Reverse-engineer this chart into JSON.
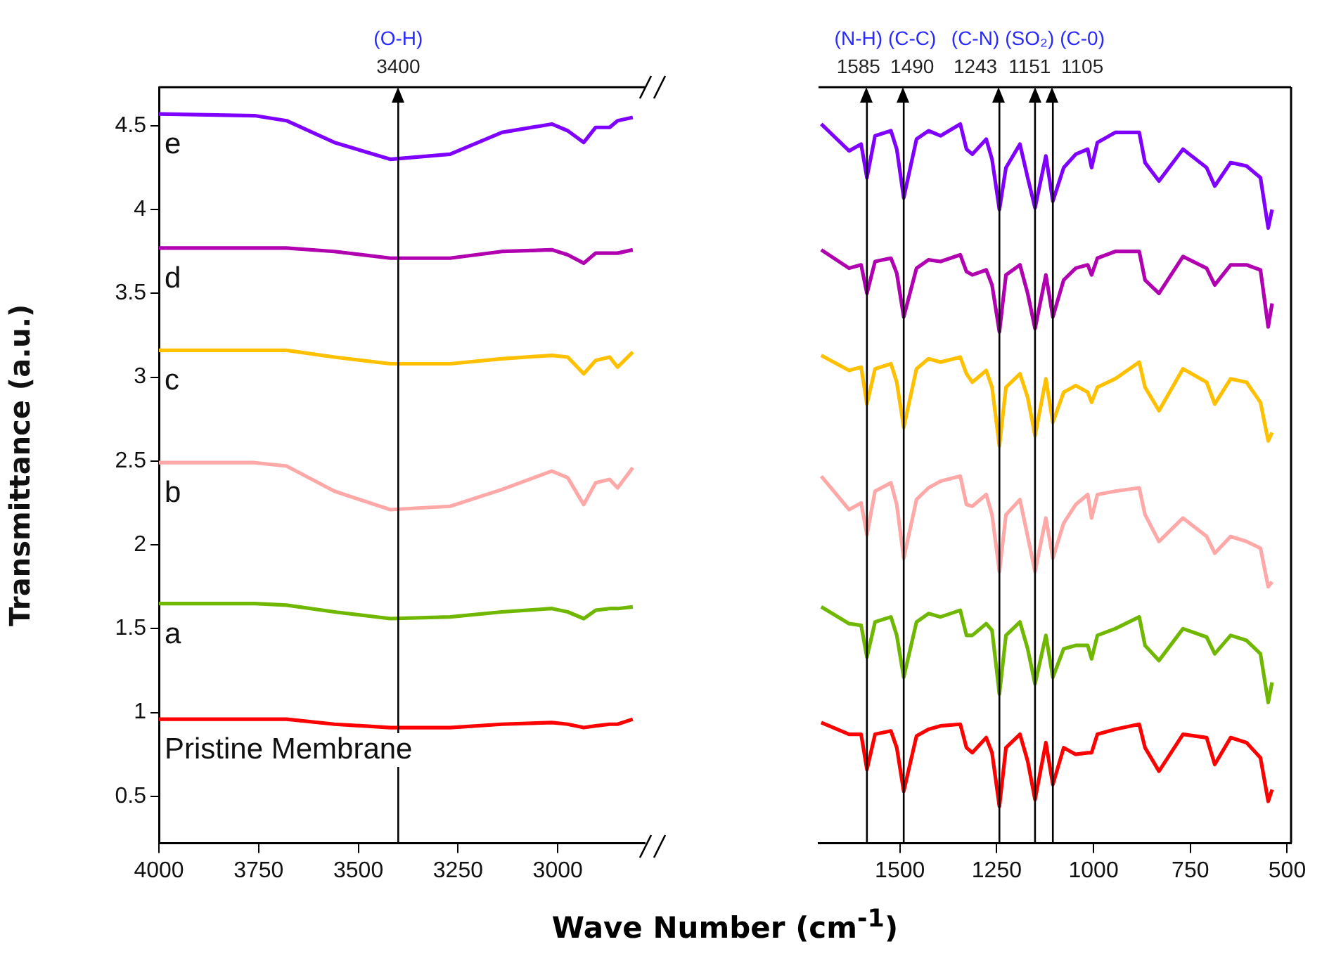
{
  "chart_data": [
    {
      "type": "line",
      "xlabel": "Wave Number (cm$^{-1}$)",
      "ylabel": "Transmittance (a.u.)",
      "xlim": [
        4000,
        2780
      ],
      "xticks": [
        4000,
        3750,
        3500,
        3250,
        3000
      ],
      "ylim": [
        0.22,
        4.73
      ],
      "yticks": [
        0.5,
        1.0,
        1.5,
        2.0,
        2.5,
        3.0,
        3.5,
        4.0,
        4.5
      ],
      "x": [
        4000,
        3760,
        3680,
        3560,
        3420,
        3270,
        3140,
        3015,
        2975,
        2935,
        2905,
        2870,
        2850,
        2812
      ],
      "series": [
        {
          "name": "e",
          "color": "#8000ff",
          "values": [
            4.57,
            4.56,
            4.53,
            4.4,
            4.3,
            4.33,
            4.46,
            4.51,
            4.47,
            4.4,
            4.49,
            4.49,
            4.53,
            4.55
          ]
        },
        {
          "name": "d",
          "color": "#b000b0",
          "values": [
            3.77,
            3.77,
            3.77,
            3.75,
            3.71,
            3.71,
            3.75,
            3.76,
            3.73,
            3.68,
            3.74,
            3.74,
            3.74,
            3.76
          ]
        },
        {
          "name": "c",
          "color": "#ffc000",
          "values": [
            3.16,
            3.16,
            3.16,
            3.12,
            3.08,
            3.08,
            3.11,
            3.13,
            3.12,
            3.02,
            3.1,
            3.12,
            3.06,
            3.15
          ]
        },
        {
          "name": "b",
          "color": "#ffa8a8",
          "values": [
            2.49,
            2.49,
            2.47,
            2.32,
            2.21,
            2.23,
            2.33,
            2.44,
            2.4,
            2.24,
            2.37,
            2.39,
            2.34,
            2.46
          ]
        },
        {
          "name": "a",
          "color": "#70b800",
          "values": [
            1.65,
            1.65,
            1.64,
            1.6,
            1.56,
            1.57,
            1.6,
            1.62,
            1.6,
            1.56,
            1.61,
            1.62,
            1.62,
            1.63
          ]
        },
        {
          "name": "Pristine Membrane",
          "color": "#ff0000",
          "values": [
            0.96,
            0.96,
            0.96,
            0.93,
            0.91,
            0.91,
            0.93,
            0.94,
            0.93,
            0.91,
            0.92,
            0.93,
            0.93,
            0.96
          ]
        }
      ],
      "ref_lines": [
        {
          "axis": "x",
          "value": 3400,
          "label": "(O-H)",
          "color": "#000000"
        }
      ],
      "annotations": [
        "3400"
      ]
    },
    {
      "type": "line",
      "tick_labels": "x",
      "xlim": [
        1710,
        490
      ],
      "xticks": [
        1500,
        1250,
        1000,
        750,
        500
      ],
      "ylim": [
        0.22,
        4.73
      ],
      "yticks": [
        0.5,
        1.0,
        1.5,
        2.0,
        2.5,
        3.0,
        3.5,
        4.0,
        4.5
      ],
      "x": [
        1703,
        1631,
        1600,
        1585,
        1564,
        1523,
        1508,
        1490,
        1457,
        1426,
        1395,
        1344,
        1328,
        1313,
        1277,
        1262,
        1243,
        1226,
        1190,
        1170,
        1151,
        1123,
        1105,
        1077,
        1046,
        1015,
        1005,
        990,
        944,
        882,
        867,
        831,
        769,
        708,
        687,
        646,
        605,
        569,
        549,
        539
      ],
      "series": [
        {
          "color": "#8000ff",
          "values": [
            4.51,
            4.35,
            4.39,
            4.19,
            4.44,
            4.47,
            4.36,
            4.07,
            4.42,
            4.47,
            4.44,
            4.51,
            4.36,
            4.33,
            4.42,
            4.3,
            4.0,
            4.25,
            4.39,
            4.19,
            4.01,
            4.32,
            4.05,
            4.25,
            4.33,
            4.36,
            4.25,
            4.4,
            4.46,
            4.46,
            4.28,
            4.17,
            4.36,
            4.25,
            4.14,
            4.28,
            4.26,
            4.19,
            3.89,
            4.0
          ]
        },
        {
          "color": "#b000b0",
          "values": [
            3.76,
            3.65,
            3.67,
            3.5,
            3.69,
            3.71,
            3.62,
            3.36,
            3.65,
            3.7,
            3.69,
            3.73,
            3.63,
            3.61,
            3.64,
            3.55,
            3.27,
            3.61,
            3.67,
            3.5,
            3.29,
            3.61,
            3.36,
            3.58,
            3.65,
            3.67,
            3.61,
            3.71,
            3.75,
            3.75,
            3.58,
            3.5,
            3.72,
            3.65,
            3.55,
            3.67,
            3.67,
            3.64,
            3.3,
            3.44
          ]
        },
        {
          "color": "#ffc000",
          "values": [
            3.13,
            3.04,
            3.06,
            2.84,
            3.05,
            3.08,
            2.97,
            2.7,
            3.05,
            3.11,
            3.09,
            3.12,
            3.02,
            2.97,
            3.04,
            2.94,
            2.59,
            2.94,
            3.02,
            2.88,
            2.65,
            2.99,
            2.73,
            2.91,
            2.95,
            2.91,
            2.85,
            2.94,
            2.99,
            3.09,
            2.94,
            2.8,
            3.05,
            2.97,
            2.84,
            2.99,
            2.97,
            2.85,
            2.62,
            2.67
          ]
        },
        {
          "color": "#ffa8a8",
          "values": [
            2.41,
            2.21,
            2.25,
            2.06,
            2.32,
            2.37,
            2.24,
            1.92,
            2.27,
            2.34,
            2.38,
            2.41,
            2.24,
            2.23,
            2.3,
            2.18,
            1.84,
            2.18,
            2.27,
            2.05,
            1.84,
            2.16,
            1.92,
            2.13,
            2.24,
            2.3,
            2.16,
            2.3,
            2.32,
            2.34,
            2.18,
            2.02,
            2.16,
            2.05,
            1.95,
            2.05,
            2.02,
            1.98,
            1.75,
            1.78
          ]
        },
        {
          "color": "#70b800",
          "values": [
            1.63,
            1.53,
            1.52,
            1.33,
            1.54,
            1.57,
            1.46,
            1.21,
            1.54,
            1.59,
            1.57,
            1.61,
            1.46,
            1.46,
            1.53,
            1.49,
            1.11,
            1.46,
            1.54,
            1.38,
            1.17,
            1.46,
            1.21,
            1.38,
            1.4,
            1.4,
            1.32,
            1.46,
            1.5,
            1.57,
            1.4,
            1.31,
            1.5,
            1.45,
            1.35,
            1.46,
            1.43,
            1.35,
            1.06,
            1.18
          ]
        },
        {
          "color": "#ff0000",
          "values": [
            0.94,
            0.87,
            0.87,
            0.66,
            0.87,
            0.89,
            0.79,
            0.53,
            0.86,
            0.9,
            0.92,
            0.93,
            0.79,
            0.76,
            0.85,
            0.76,
            0.44,
            0.79,
            0.87,
            0.71,
            0.48,
            0.82,
            0.57,
            0.79,
            0.75,
            0.76,
            0.76,
            0.87,
            0.9,
            0.93,
            0.79,
            0.65,
            0.87,
            0.85,
            0.69,
            0.85,
            0.82,
            0.73,
            0.47,
            0.54
          ]
        }
      ],
      "ref_lines": [
        {
          "axis": "x",
          "value": 1585,
          "label": "(N-H)",
          "color": "#000000"
        },
        {
          "axis": "x",
          "value": 1490,
          "label": "(C-C)",
          "color": "#000000"
        },
        {
          "axis": "x",
          "value": 1243,
          "label": "(C-N)",
          "color": "#000000"
        },
        {
          "axis": "x",
          "value": 1151,
          "label": "(SO₂)",
          "color": "#000000"
        },
        {
          "axis": "x",
          "value": 1105,
          "label": "(C-0)",
          "color": "#000000"
        }
      ],
      "annotations": [
        "1585",
        "1490",
        "1243",
        "1151",
        "1105"
      ]
    }
  ]
}
